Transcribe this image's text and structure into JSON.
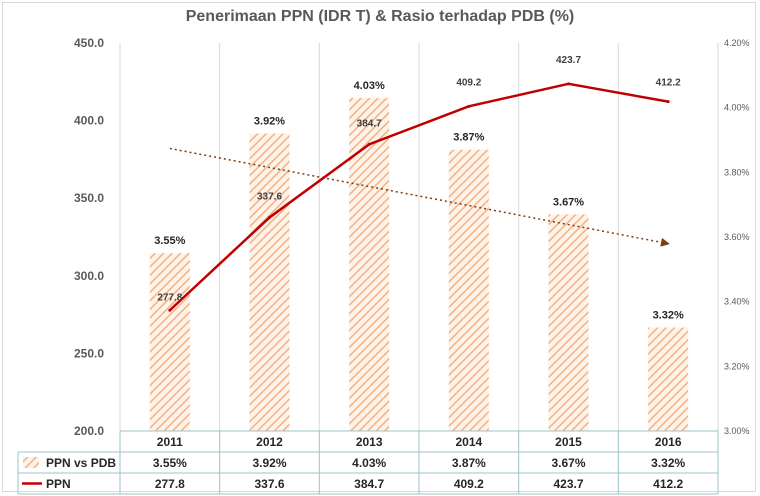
{
  "chart_data": {
    "type": "bar",
    "title": "Penerimaan PPN (IDR T) & Rasio terhadap PDB (%)",
    "categories": [
      "2011",
      "2012",
      "2013",
      "2014",
      "2015",
      "2016"
    ],
    "series": [
      {
        "name": "PPN vs PDB",
        "type": "bar",
        "axis": "right",
        "values": [
          3.55,
          3.92,
          4.03,
          3.87,
          3.67,
          3.32
        ],
        "labels": [
          "3.55%",
          "3.92%",
          "4.03%",
          "3.87%",
          "3.67%",
          "3.32%"
        ],
        "color": "#f4b183",
        "pattern": "diagonal-hatch"
      },
      {
        "name": "PPN",
        "type": "line",
        "axis": "left",
        "values": [
          277.8,
          337.6,
          384.7,
          409.2,
          423.7,
          412.2
        ],
        "labels": [
          "277.8",
          "337.6",
          "384.7",
          "409.2",
          "423.7",
          "412.2"
        ],
        "color": "#c00000"
      }
    ],
    "trendline": {
      "of_series": "PPN vs PDB",
      "type": "linear",
      "color": "#843c0c",
      "style": "dotted",
      "arrow": true
    },
    "y_left": {
      "ylim": [
        200,
        450
      ],
      "ticks": [
        "200.0",
        "250.0",
        "300.0",
        "350.0",
        "400.0",
        "450.0"
      ]
    },
    "y_right": {
      "ylim": [
        3.0,
        4.2
      ],
      "ticks": [
        "3.00%",
        "3.20%",
        "3.40%",
        "3.60%",
        "3.80%",
        "4.00%",
        "4.20%"
      ]
    },
    "grid": "vertical",
    "data_table": {
      "rows": [
        {
          "name": "PPN vs PDB",
          "values": [
            "3.55%",
            "3.92%",
            "4.03%",
            "3.87%",
            "3.67%",
            "3.32%"
          ]
        },
        {
          "name": "PPN",
          "values": [
            "277.8",
            "337.6",
            "384.7",
            "409.2",
            "423.7",
            "412.2"
          ]
        }
      ]
    }
  }
}
